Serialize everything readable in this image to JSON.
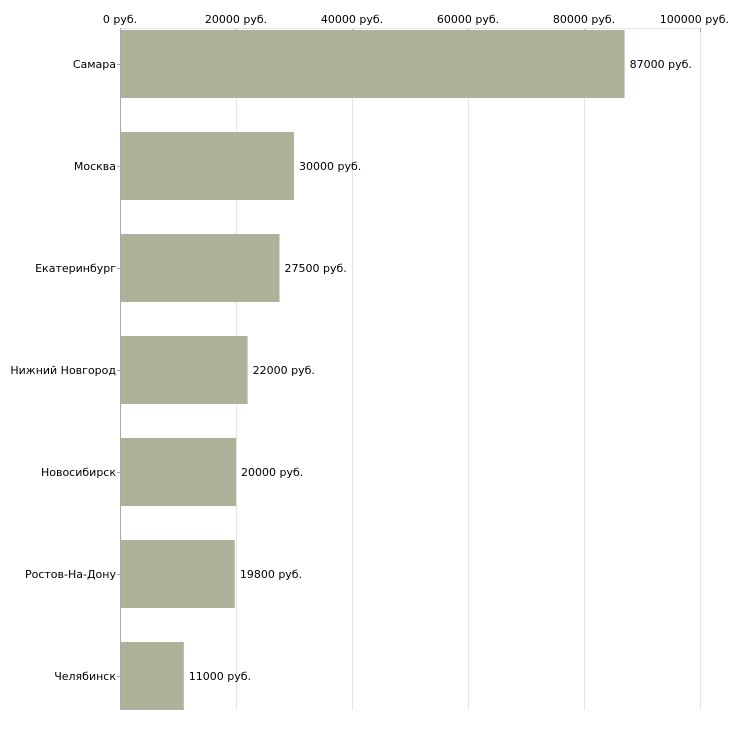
{
  "chart_data": {
    "type": "bar",
    "orientation": "horizontal",
    "title": "",
    "xlabel": "",
    "ylabel": "",
    "xlim": [
      0,
      100000
    ],
    "x_ticks": [
      0,
      20000,
      40000,
      60000,
      80000,
      100000
    ],
    "x_tick_labels": [
      "0 руб.",
      "20000 руб.",
      "40000 руб.",
      "60000 руб.",
      "80000 руб.",
      "100000 руб."
    ],
    "x_axis_position": "top",
    "grid": true,
    "categories": [
      "Самара",
      "Москва",
      "Екатеринбург",
      "Нижний Новгород",
      "Новосибирск",
      "Ростов-На-Дону",
      "Челябинск"
    ],
    "values": [
      87000,
      30000,
      27500,
      22000,
      20000,
      19800,
      11000
    ],
    "value_labels": [
      "87000 руб.",
      "30000 руб.",
      "27500 руб.",
      "22000 руб.",
      "20000 руб.",
      "19800 руб.",
      "11000 руб."
    ],
    "bar_color": "#adb399",
    "grid_color": "#e2e2e2",
    "axis_color": "#aaaaaa"
  }
}
